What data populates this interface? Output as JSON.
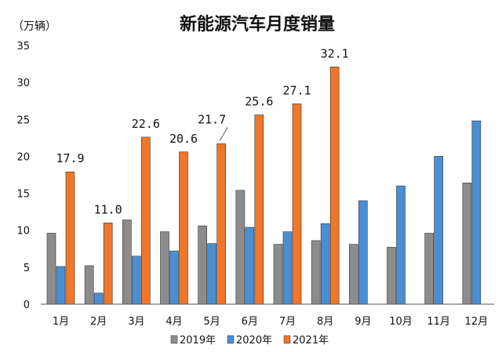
{
  "chart_data": {
    "type": "bar",
    "title": "新能源汽车月度销量",
    "unit_label": "（万辆）",
    "categories": [
      "1月",
      "2月",
      "3月",
      "4月",
      "5月",
      "6月",
      "7月",
      "8月",
      "9月",
      "10月",
      "11月",
      "12月"
    ],
    "series": [
      {
        "name": "2019年",
        "color": "#8c8c8c",
        "values": [
          9.6,
          5.2,
          11.4,
          9.8,
          10.6,
          15.4,
          8.1,
          8.6,
          8.1,
          7.7,
          9.6,
          16.4
        ]
      },
      {
        "name": "2020年",
        "color": "#4a8fd4",
        "values": [
          5.1,
          1.5,
          6.5,
          7.2,
          8.2,
          10.4,
          9.8,
          10.9,
          14.0,
          16.0,
          20.0,
          24.8
        ]
      },
      {
        "name": "2021年",
        "color": "#f0772a",
        "values": [
          17.9,
          11.0,
          22.6,
          20.6,
          21.7,
          25.6,
          27.1,
          32.1,
          null,
          null,
          null,
          null
        ]
      }
    ],
    "data_labels": [
      "17.9",
      "11.0",
      "22.6",
      "20.6",
      "21.7",
      "25.6",
      "27.1",
      "32.1"
    ],
    "yticks": [
      "0",
      "5",
      "10",
      "15",
      "20",
      "25",
      "30",
      "35"
    ],
    "ylim": [
      0,
      35
    ],
    "grid": false,
    "legend_position": "bottom"
  }
}
